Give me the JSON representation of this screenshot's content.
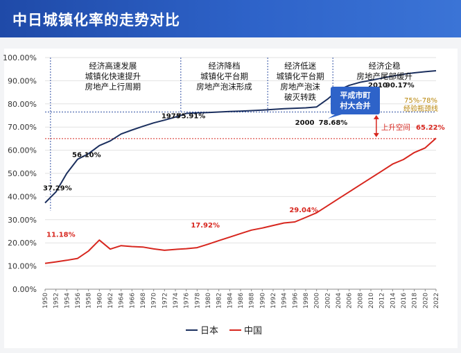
{
  "header": {
    "title": "中日城镇化率的走势对比"
  },
  "chart_data": {
    "type": "line",
    "ylim": [
      0,
      100
    ],
    "yticks": [
      "0.00%",
      "10.00%",
      "20.00%",
      "30.00%",
      "40.00%",
      "50.00%",
      "60.00%",
      "70.00%",
      "80.00%",
      "90.00%",
      "100.00%"
    ],
    "xlim": [
      1950,
      2022
    ],
    "xticks": [
      "1950",
      "1952",
      "1954",
      "1956",
      "1958",
      "1960",
      "1962",
      "1964",
      "1966",
      "1968",
      "1970",
      "1972",
      "1974",
      "1976",
      "1978",
      "1980",
      "1982",
      "1984",
      "1986",
      "1988",
      "1990",
      "1992",
      "1994",
      "1996",
      "1998",
      "2000",
      "2002",
      "2004",
      "2006",
      "2008",
      "2010",
      "2012",
      "2014",
      "2016",
      "2018",
      "2020",
      "2022"
    ],
    "series": [
      {
        "name": "日本",
        "color": "#1b2f5e",
        "points": [
          [
            1950,
            37.29
          ],
          [
            1952,
            42
          ],
          [
            1954,
            50
          ],
          [
            1956,
            56.1
          ],
          [
            1958,
            58.5
          ],
          [
            1960,
            62
          ],
          [
            1962,
            64
          ],
          [
            1964,
            67
          ],
          [
            1966,
            68.7
          ],
          [
            1968,
            70.3
          ],
          [
            1970,
            71.8
          ],
          [
            1972,
            73
          ],
          [
            1974,
            74.3
          ],
          [
            1975,
            75
          ],
          [
            1976,
            75.91
          ],
          [
            1978,
            76.1
          ],
          [
            1980,
            76.3
          ],
          [
            1982,
            76.5
          ],
          [
            1984,
            76.7
          ],
          [
            1986,
            76.9
          ],
          [
            1988,
            77.1
          ],
          [
            1990,
            77.3
          ],
          [
            1992,
            77.6
          ],
          [
            1994,
            77.9
          ],
          [
            1996,
            78.1
          ],
          [
            1998,
            78.3
          ],
          [
            2000,
            78.68
          ],
          [
            2002,
            82
          ],
          [
            2004,
            86
          ],
          [
            2006,
            88
          ],
          [
            2008,
            89.3
          ],
          [
            2010,
            90.17
          ],
          [
            2012,
            91.1
          ],
          [
            2014,
            92
          ],
          [
            2016,
            92.8
          ],
          [
            2018,
            93.4
          ],
          [
            2020,
            93.9
          ],
          [
            2022,
            94.3
          ]
        ]
      },
      {
        "name": "中国",
        "color": "#d7261e",
        "points": [
          [
            1950,
            11.18
          ],
          [
            1952,
            11.8
          ],
          [
            1954,
            12.5
          ],
          [
            1956,
            13.3
          ],
          [
            1958,
            16.5
          ],
          [
            1960,
            21.2
          ],
          [
            1962,
            17.3
          ],
          [
            1964,
            18.8
          ],
          [
            1966,
            18.4
          ],
          [
            1968,
            18.2
          ],
          [
            1970,
            17.4
          ],
          [
            1972,
            16.8
          ],
          [
            1974,
            17.2
          ],
          [
            1976,
            17.5
          ],
          [
            1978,
            17.92
          ],
          [
            1980,
            19.4
          ],
          [
            1982,
            21
          ],
          [
            1984,
            22.5
          ],
          [
            1986,
            24
          ],
          [
            1988,
            25.5
          ],
          [
            1990,
            26.4
          ],
          [
            1992,
            27.5
          ],
          [
            1994,
            28.6
          ],
          [
            1996,
            29.04
          ],
          [
            1998,
            31
          ],
          [
            2000,
            33
          ],
          [
            2002,
            36
          ],
          [
            2004,
            39
          ],
          [
            2006,
            42
          ],
          [
            2008,
            45
          ],
          [
            2010,
            48
          ],
          [
            2012,
            51
          ],
          [
            2014,
            54
          ],
          [
            2016,
            56
          ],
          [
            2018,
            59
          ],
          [
            2020,
            61
          ],
          [
            2022,
            65.22
          ]
        ]
      }
    ],
    "data_labels": [
      {
        "text": "37.29%",
        "series": "日本",
        "x": 1950,
        "y": 37.29
      },
      {
        "text": "56.10%",
        "series": "日本",
        "x": 1956,
        "y": 56.1
      },
      {
        "text": "1975",
        "series": "日本",
        "x": 1975,
        "y": 75
      },
      {
        "text": "75.91%",
        "series": "日本",
        "x": 1976,
        "y": 75.91
      },
      {
        "text": "2000",
        "series": "日本",
        "x": 2000,
        "y": 78.68
      },
      {
        "text": "78.68%",
        "series": "日本",
        "x": 2000,
        "y": 78.68
      },
      {
        "text": "2010",
        "series": "日本",
        "x": 2010,
        "y": 90.17
      },
      {
        "text": "90.17%",
        "series": "日本",
        "x": 2010,
        "y": 90.17
      },
      {
        "text": "11.18%",
        "series": "中国",
        "x": 1950,
        "y": 11.18
      },
      {
        "text": "17.92%",
        "series": "中国",
        "x": 1978,
        "y": 17.92
      },
      {
        "text": "29.04%",
        "series": "中国",
        "x": 1996,
        "y": 29.04
      },
      {
        "text": "65.22%",
        "series": "中国",
        "x": 2022,
        "y": 65.22
      }
    ],
    "phases": [
      {
        "lines": [
          "经济高速发展",
          "城镇化快速提升",
          "房地产上行周期"
        ],
        "from": 1950,
        "to": 1975
      },
      {
        "lines": [
          "经济降档",
          "城镇化平台期",
          "房地产泡沫形成"
        ],
        "from": 1975,
        "to": 1991
      },
      {
        "lines": [
          "经济低迷",
          "城镇化平台期",
          "房地产泡沫",
          "破灭转跌"
        ],
        "from": 1991,
        "to": 2003
      },
      {
        "lines": [
          "经济企稳",
          "房地产尾部缓升"
        ],
        "from": 2003,
        "to": 2022
      }
    ],
    "phase_dividers": [
      1951,
      1975,
      1991,
      2003
    ],
    "reference_lines": [
      {
        "y": 76.5,
        "color": "#2f4fa3"
      },
      {
        "y": 65,
        "color": "#d7261e"
      }
    ],
    "callout": {
      "lines": [
        "平成市町",
        "村大合并"
      ],
      "color": "#2e63c9"
    },
    "threshold_note": [
      "75%-78%",
      "经验瓶颈线"
    ],
    "gap_note": "上升空间",
    "legend": {
      "position": "bottom",
      "entries": [
        "日本",
        "中国"
      ]
    }
  }
}
